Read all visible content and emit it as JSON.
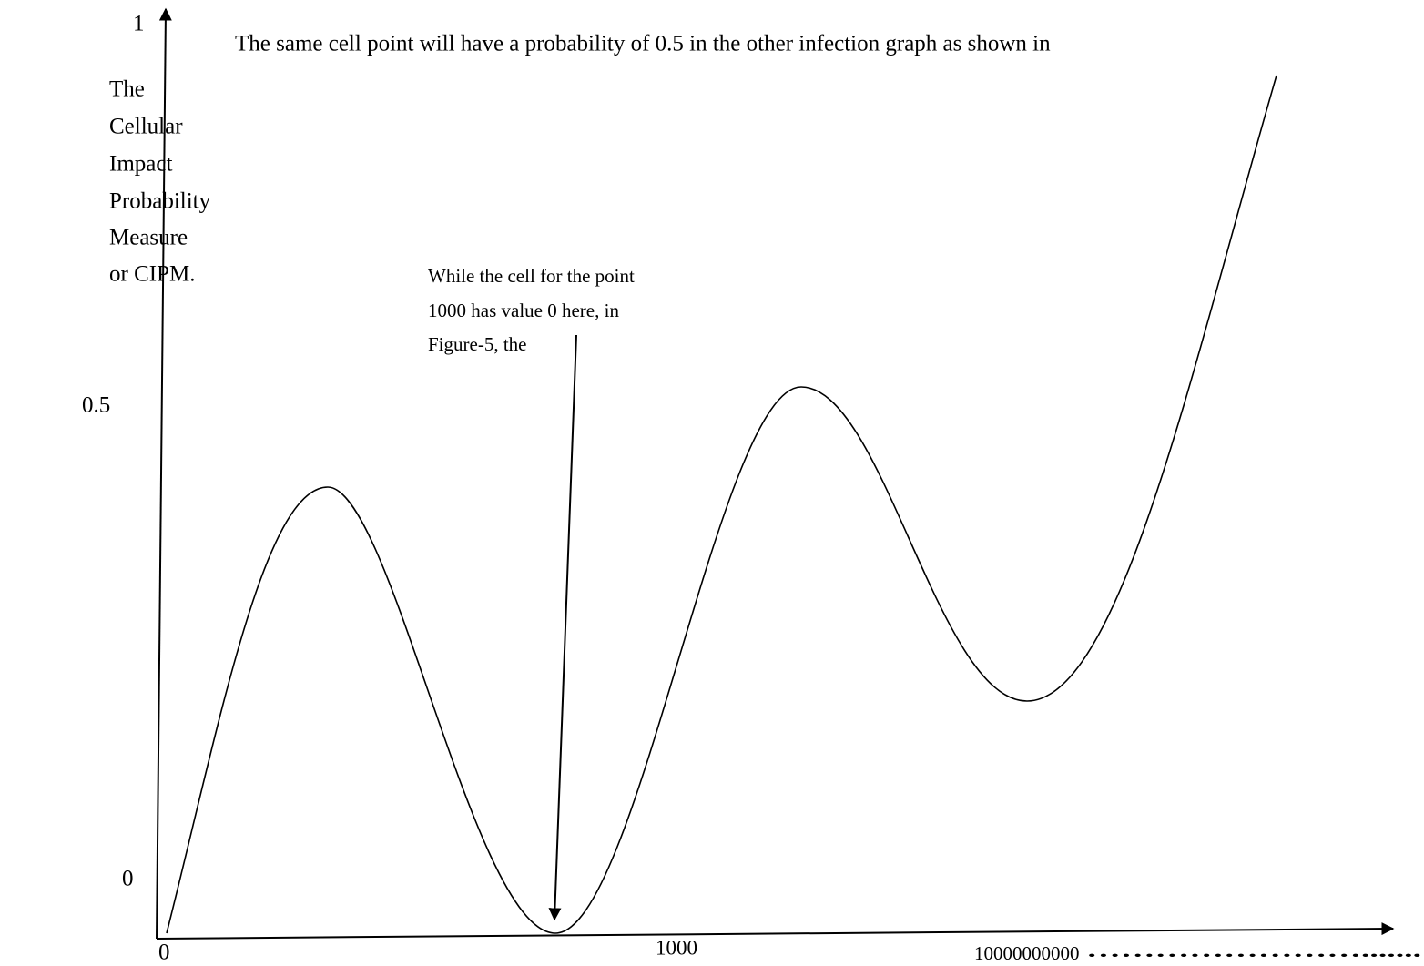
{
  "top_text": "The same cell point will have a probability of 0.5 in the other infection graph as shown in",
  "y_axis": {
    "label_lines": [
      "The",
      "Cellular",
      "Impact",
      "Probability",
      "Measure",
      "or CIPM."
    ],
    "ticks": [
      "1",
      "0.5",
      "0"
    ]
  },
  "annotation": {
    "lines": [
      "While the cell for the point",
      "1000 has value 0 here, in",
      "Figure-5, the"
    ]
  },
  "x_axis": {
    "ticks": [
      "0",
      "1000",
      "10000000000"
    ],
    "trailing": "……………………......."
  }
}
